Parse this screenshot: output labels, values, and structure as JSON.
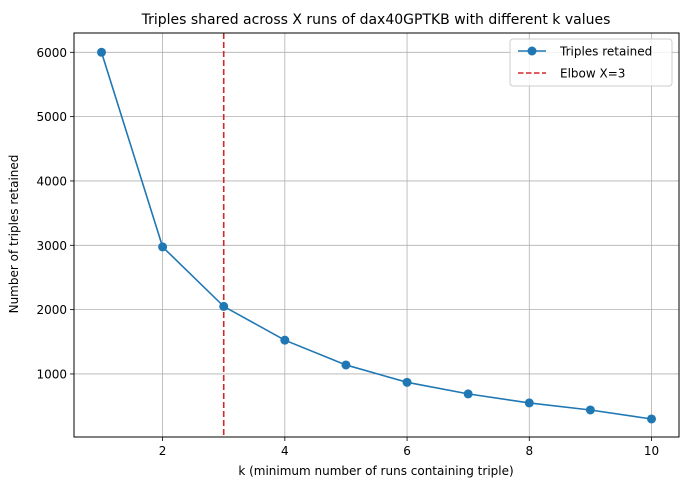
{
  "chart_data": {
    "type": "line",
    "title": "Triples shared across X runs of dax40GPTKB with different k values",
    "xlabel": "k (minimum number of runs containing triple)",
    "ylabel": "Number of triples retained",
    "xlim": [
      0.55,
      10.45
    ],
    "ylim": [
      20,
      6300
    ],
    "x_ticks": [
      2,
      4,
      6,
      8,
      10
    ],
    "y_ticks": [
      1000,
      2000,
      3000,
      4000,
      5000,
      6000
    ],
    "grid": true,
    "legend_position": "top-right",
    "series": [
      {
        "name": "Triples retained",
        "color": "#1f77b4",
        "marker": "circle",
        "x": [
          1,
          2,
          3,
          4,
          5,
          6,
          7,
          8,
          9,
          10
        ],
        "y": [
          6000,
          2975,
          2050,
          1525,
          1140,
          870,
          690,
          550,
          440,
          300
        ]
      }
    ],
    "reference_lines": [
      {
        "name": "Elbow X=3",
        "orientation": "vertical",
        "x": 3,
        "color": "#d62728",
        "style": "dashed"
      }
    ]
  }
}
